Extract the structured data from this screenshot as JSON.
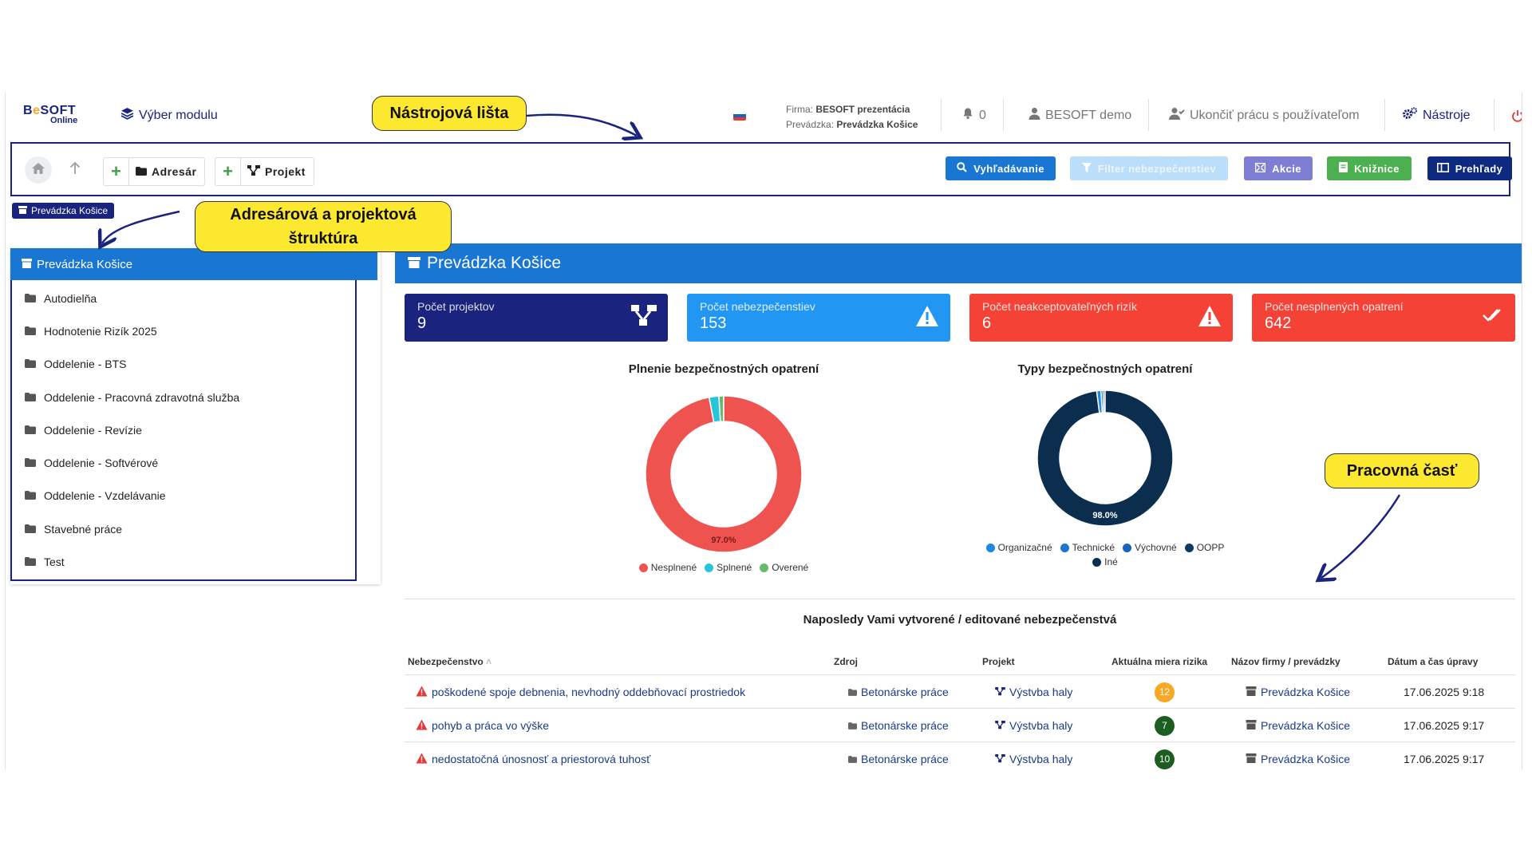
{
  "logo": {
    "brand": "BESOFT",
    "brand_a": "B",
    "brand_o": "e",
    "brand_b": "SOFT",
    "tag": "Online"
  },
  "nav": {
    "module": "Výber modulu",
    "firma_label": "Firma:",
    "firma_value": "BESOFT prezentácia",
    "prevadzka_label": "Prevádzka:",
    "prevadzka_value": "Prevádzka Košice",
    "notifications": "0",
    "user": "BESOFT demo",
    "end_work": "Ukončiť prácu s používateľom",
    "tools": "Nástroje"
  },
  "toolbar": {
    "adresar": "Adresár",
    "projekt": "Projekt",
    "buttons": [
      {
        "label": "Vyhľadávanie",
        "color": "#1976d2"
      },
      {
        "label": "Filter nebezpečenstiev",
        "color": "#bbdefb"
      },
      {
        "label": "Akcie",
        "color": "#7e7fd4"
      },
      {
        "label": "Knižnice",
        "color": "#4caf50"
      },
      {
        "label": "Prehľady",
        "color": "#0d2a80"
      }
    ]
  },
  "location_badge": "Prevádzka Košice",
  "tree": {
    "root": "Prevádzka Košice",
    "items": [
      "Autodielňa",
      "Hodnotenie Rizík 2025",
      "Oddelenie - BTS",
      "Oddelenie - Pracovná zdravotná služba",
      "Oddelenie - Revízie",
      "Oddelenie - Softvérové",
      "Oddelenie - Vzdelávanie",
      "Stavebné práce",
      "Test"
    ]
  },
  "main": {
    "title": "Prevádzka Košice",
    "cards": [
      {
        "title": "Počet projektov",
        "value": "9",
        "color": "#1a237e",
        "icon": "project-tree-icon"
      },
      {
        "title": "Počet nebezpečenstiev",
        "value": "153",
        "color": "#2196f3",
        "icon": "warning-icon"
      },
      {
        "title": "Počet neakceptovateľných rizík",
        "value": "6",
        "color": "#f44336",
        "icon": "warning-icon"
      },
      {
        "title": "Počet nesplnených opatrení",
        "value": "642",
        "color": "#f44336",
        "icon": "double-check-icon"
      }
    ]
  },
  "chart_data": [
    {
      "type": "pie",
      "title": "Plnenie bezpečnostných opatrení",
      "categories": [
        "Nesplnené",
        "Splnené",
        "Overené"
      ],
      "values": [
        97.0,
        2.0,
        1.0
      ],
      "colors": [
        "#ef5350",
        "#26c6da",
        "#66bb6a"
      ],
      "data_label": "97.0%",
      "legend": "bottom"
    },
    {
      "type": "pie",
      "title": "Typy bezpečnostných opatrení",
      "categories": [
        "Organizačné",
        "Technické",
        "Výchovné",
        "OOPP",
        "Iné"
      ],
      "values": [
        1.0,
        0.5,
        0.5,
        0.0,
        98.0
      ],
      "colors": [
        "#1e88e5",
        "#1976d2",
        "#1565c0",
        "#0d3b66",
        "#0b2e4f"
      ],
      "data_label": "98.0%",
      "legend": "bottom"
    }
  ],
  "table": {
    "title": "Naposledy Vami vytvorené / editované nebezpečenstvá",
    "headers": [
      "Nebezpečenstvo",
      "Zdroj",
      "Projekt",
      "Aktuálna miera rizika",
      "Názov firmy / prevádzky",
      "Dátum a čas úpravy"
    ],
    "sort_marker": "˄",
    "rows": [
      {
        "hazard": "poškodené spoje debnenia, nevhodný oddebňovací prostriedok",
        "source": "Betonárske práce",
        "project": "Výstvba haly",
        "risk": "12",
        "risk_color": "#f9a825",
        "firm": "Prevádzka Košice",
        "date": "17.06.2025 9:18"
      },
      {
        "hazard": "pohyb a práca vo výške",
        "source": "Betonárske práce",
        "project": "Výstvba haly",
        "risk": "7",
        "risk_color": "#1b5e20",
        "firm": "Prevádzka Košice",
        "date": "17.06.2025 9:17"
      },
      {
        "hazard": "nedostatočná únosnosť a priestorová tuhosť",
        "source": "Betonárske práce",
        "project": "Výstvba haly",
        "risk": "10",
        "risk_color": "#1b5e20",
        "firm": "Prevádzka Košice",
        "date": "17.06.2025 9:17"
      }
    ]
  },
  "annotations": {
    "toolbar": "Nástrojová lišta",
    "structure_line1": "Adresárová a projektová",
    "structure_line2": "štruktúra",
    "workspace": "Pracovná časť"
  }
}
